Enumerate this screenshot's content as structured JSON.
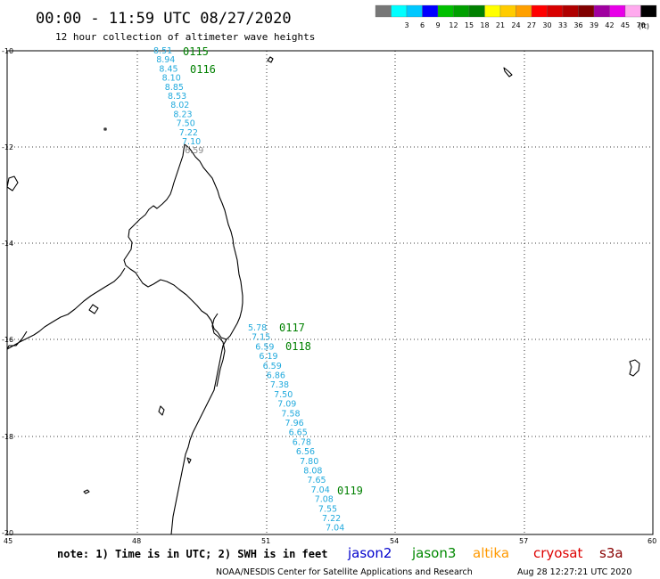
{
  "title": "00:00 - 11:59 UTC 08/27/2020",
  "subtitle": "12 hour collection of altimeter wave heights",
  "legend": {
    "unit": "(ft)",
    "items": [
      {
        "label": "",
        "color": "#777777"
      },
      {
        "label": "3",
        "color": "#00ffff"
      },
      {
        "label": "6",
        "color": "#00c8ff"
      },
      {
        "label": "9",
        "color": "#0000ff"
      },
      {
        "label": "12",
        "color": "#00c000"
      },
      {
        "label": "15",
        "color": "#00a000"
      },
      {
        "label": "18",
        "color": "#008000"
      },
      {
        "label": "21",
        "color": "#ffff00"
      },
      {
        "label": "24",
        "color": "#ffcc00"
      },
      {
        "label": "27",
        "color": "#ffa000"
      },
      {
        "label": "30",
        "color": "#ff0000"
      },
      {
        "label": "33",
        "color": "#d80000"
      },
      {
        "label": "36",
        "color": "#b00000"
      },
      {
        "label": "39",
        "color": "#800000"
      },
      {
        "label": "42",
        "color": "#a000a0"
      },
      {
        "label": "45",
        "color": "#e800e8"
      },
      {
        "label": "70",
        "color": "#ffaaee"
      },
      {
        "label": "",
        "color": "#000000"
      }
    ]
  },
  "axes": {
    "lat_ticks": [
      "-10",
      "-12",
      "-14",
      "-16",
      "-18",
      "-20"
    ],
    "lon_ticks": [
      "45",
      "48",
      "51",
      "54",
      "57",
      "60"
    ]
  },
  "tracks": [
    {
      "values": [
        "8.51",
        "8.94",
        "8.45",
        "8.10",
        "8.85",
        "8.53",
        "8.02",
        "8.23",
        "7.50",
        "7.22",
        "7.10",
        "6.59"
      ],
      "passes": [
        "0115",
        "0116"
      ]
    },
    {
      "values": [
        "5.78",
        "7.15",
        "6.59",
        "6.19",
        "6.59",
        "6.86",
        "7.38",
        "7.50",
        "7.09",
        "7.58",
        "7.96",
        "6.65",
        "6.78",
        "6.56",
        "7.80",
        "8.08",
        "7.65",
        "7.04",
        "7.08",
        "7.55",
        "7.22",
        "7.04"
      ],
      "passes": [
        "0117",
        "0118",
        "0119"
      ]
    }
  ],
  "note": "note: 1) Time is in UTC; 2) SWH is in feet",
  "missions": [
    {
      "name": "jason2",
      "color": "#0000cc"
    },
    {
      "name": "jason3",
      "color": "#008800"
    },
    {
      "name": "altika",
      "color": "#ff9900"
    },
    {
      "name": "cryosat",
      "color": "#dd0000"
    },
    {
      "name": "s3a",
      "color": "#880000"
    }
  ],
  "credit": "NOAA/NESDIS Center for Satellite Applications and Research",
  "timestamp": "Aug 28 12:27:21 UTC 2020"
}
